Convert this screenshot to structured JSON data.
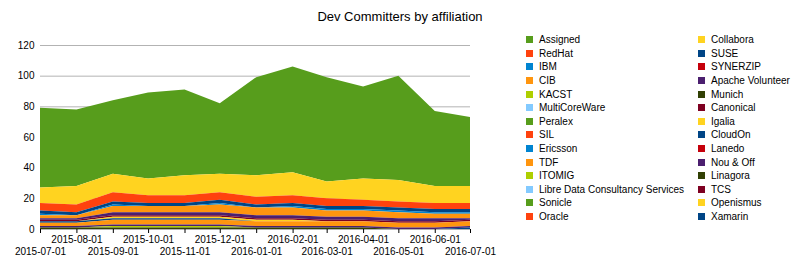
{
  "chart_data": {
    "type": "area",
    "title": "Dev Committers by affiliation",
    "stacked": true,
    "grid": true,
    "legend": "right",
    "x": [
      "2015-07-01",
      "2015-08-01",
      "2015-09-01",
      "2015-10-01",
      "2015-11-01",
      "2015-12-01",
      "2016-01-01",
      "2016-02-01",
      "2016-03-01",
      "2016-04-01",
      "2016-05-01",
      "2016-06-01",
      "2016-07-01"
    ],
    "xlim": [
      "2015-07-01",
      "2016-07-01"
    ],
    "xticks": [
      "2015-07-01",
      "2015-08-01",
      "2015-09-01",
      "2015-10-01",
      "2015-11-01",
      "2015-12-01",
      "2016-01-01",
      "2016-02-01",
      "2016-03-01",
      "2016-04-01",
      "2016-05-01",
      "2016-06-01",
      "2016-07-01"
    ],
    "ylim": [
      0,
      120
    ],
    "yticks": [
      0,
      20,
      40,
      60,
      80,
      100,
      120
    ],
    "series": [
      {
        "name": "Assigned",
        "color": "#579d1c",
        "values": [
          52,
          50,
          48,
          56,
          56,
          46,
          64,
          69,
          68,
          60,
          68,
          49,
          45
        ]
      },
      {
        "name": "Collabora",
        "color": "#ffd320",
        "values": [
          10,
          12,
          12,
          11,
          13,
          12,
          14,
          15,
          11,
          14,
          14,
          11,
          11
        ]
      },
      {
        "name": "RedHat",
        "color": "#ff420e",
        "values": [
          5,
          5,
          6,
          5,
          5,
          5,
          5,
          5,
          5,
          4,
          4,
          4,
          4
        ]
      },
      {
        "name": "SUSE",
        "color": "#004586",
        "values": [
          2,
          2,
          2,
          2,
          2,
          2,
          2,
          2,
          2,
          2,
          2,
          2,
          2
        ]
      },
      {
        "name": "IBM",
        "color": "#0084d1",
        "values": [
          1,
          0,
          1,
          0,
          0,
          1,
          0,
          1,
          1,
          1,
          1,
          1,
          1
        ]
      },
      {
        "name": "SYNERZIP",
        "color": "#c5000b",
        "values": [
          0,
          0,
          0,
          0,
          0,
          0,
          0,
          0,
          0,
          0,
          0,
          0,
          0
        ]
      },
      {
        "name": "CIB",
        "color": "#ff950e",
        "values": [
          2,
          2,
          4,
          4,
          4,
          5,
          5,
          5,
          4,
          4,
          4,
          3,
          3
        ]
      },
      {
        "name": "Apache Volunteer",
        "color": "#4b1f6f",
        "values": [
          1,
          1,
          2,
          2,
          2,
          2,
          2,
          2,
          2,
          2,
          2,
          2,
          1
        ]
      },
      {
        "name": "KACST",
        "color": "#aecf00",
        "values": [
          0,
          0,
          0,
          0,
          0,
          0,
          0,
          0,
          0,
          0,
          0,
          0,
          0
        ]
      },
      {
        "name": "Munich",
        "color": "#314004",
        "values": [
          0,
          0,
          0,
          0,
          0,
          0,
          0,
          0,
          0,
          0,
          0,
          0,
          0
        ]
      },
      {
        "name": "MultiCoreWare",
        "color": "#83caff",
        "values": [
          0,
          0,
          0,
          0,
          0,
          0,
          0,
          0,
          0,
          0,
          0,
          0,
          0
        ]
      },
      {
        "name": "Canonical",
        "color": "#7e0021",
        "values": [
          1,
          1,
          1,
          1,
          1,
          1,
          1,
          1,
          1,
          1,
          1,
          1,
          1
        ]
      },
      {
        "name": "Peralex",
        "color": "#579d1c",
        "values": [
          0,
          0,
          0,
          0,
          0,
          0,
          0,
          0,
          0,
          0,
          0,
          0,
          0
        ]
      },
      {
        "name": "Igalia",
        "color": "#ffd320",
        "values": [
          0,
          0,
          1,
          1,
          1,
          1,
          1,
          1,
          0,
          0,
          0,
          0,
          0
        ]
      },
      {
        "name": "SIL",
        "color": "#ff420e",
        "values": [
          0,
          0,
          0,
          0,
          0,
          0,
          0,
          0,
          0,
          0,
          0,
          0,
          0
        ]
      },
      {
        "name": "CloudOn",
        "color": "#004586",
        "values": [
          1,
          1,
          1,
          1,
          1,
          1,
          0,
          0,
          0,
          0,
          0,
          0,
          0
        ]
      },
      {
        "name": "Ericsson",
        "color": "#0084d1",
        "values": [
          0,
          0,
          0,
          0,
          0,
          0,
          0,
          0,
          0,
          0,
          0,
          0,
          0
        ]
      },
      {
        "name": "Lanedo",
        "color": "#c5000b",
        "values": [
          0,
          0,
          0,
          0,
          0,
          0,
          0,
          0,
          0,
          0,
          0,
          0,
          0
        ]
      },
      {
        "name": "TDF",
        "color": "#ff950e",
        "values": [
          2,
          2,
          3,
          3,
          3,
          3,
          3,
          3,
          3,
          3,
          3,
          3,
          3
        ]
      },
      {
        "name": "Nou & Off",
        "color": "#4b1f6f",
        "values": [
          1,
          1,
          1,
          1,
          1,
          1,
          1,
          1,
          1,
          1,
          1,
          1,
          1
        ]
      },
      {
        "name": "ITOMIG",
        "color": "#aecf00",
        "values": [
          0,
          0,
          1,
          1,
          1,
          1,
          0,
          0,
          0,
          0,
          0,
          0,
          0
        ]
      },
      {
        "name": "Linagora",
        "color": "#314004",
        "values": [
          1,
          1,
          1,
          1,
          1,
          1,
          1,
          1,
          1,
          1,
          0,
          0,
          0
        ]
      },
      {
        "name": "Libre Data Consultancy Services",
        "color": "#83caff",
        "values": [
          0,
          0,
          0,
          0,
          0,
          0,
          0,
          0,
          0,
          0,
          0,
          0,
          0
        ]
      },
      {
        "name": "TCS",
        "color": "#7e0021",
        "values": [
          0,
          0,
          0,
          0,
          0,
          0,
          0,
          0,
          0,
          0,
          0,
          0,
          0
        ]
      },
      {
        "name": "Sonicle",
        "color": "#579d1c",
        "values": [
          0,
          0,
          0,
          0,
          0,
          0,
          0,
          0,
          0,
          0,
          0,
          0,
          0
        ]
      },
      {
        "name": "Openismus",
        "color": "#ffd320",
        "values": [
          0,
          0,
          0,
          0,
          0,
          0,
          0,
          0,
          0,
          0,
          0,
          0,
          0
        ]
      },
      {
        "name": "Oracle",
        "color": "#ff420e",
        "values": [
          0,
          0,
          0,
          0,
          0,
          0,
          0,
          0,
          0,
          0,
          0,
          0,
          0
        ]
      },
      {
        "name": "Xamarin",
        "color": "#004586",
        "values": [
          0,
          0,
          0,
          0,
          0,
          0,
          0,
          0,
          0,
          0,
          0,
          0,
          1
        ]
      }
    ]
  }
}
